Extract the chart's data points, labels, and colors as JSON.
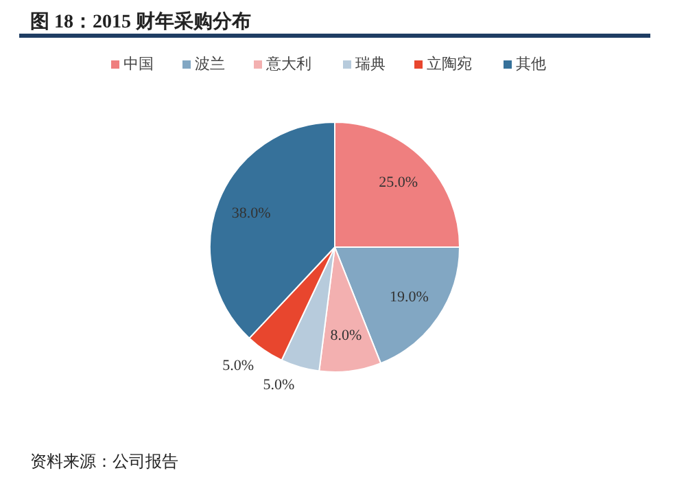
{
  "chart_data": {
    "type": "pie",
    "title": "图 18：2015 财年采购分布",
    "categories": [
      "中国",
      "波兰",
      "意大利",
      "瑞典",
      "立陶宛",
      "其他"
    ],
    "values": [
      25,
      19,
      8,
      5,
      5,
      38
    ],
    "colors": [
      "#ef7f7f",
      "#82a7c3",
      "#f3b0b0",
      "#b7cbdc",
      "#e8462e",
      "#36719a"
    ],
    "value_labels": [
      "25.0%",
      "19.0%",
      "8.0%",
      "5.0%",
      "5.0%",
      "38.0%"
    ],
    "legend": "top",
    "annotations": [
      "资料来源：公司报告"
    ]
  }
}
